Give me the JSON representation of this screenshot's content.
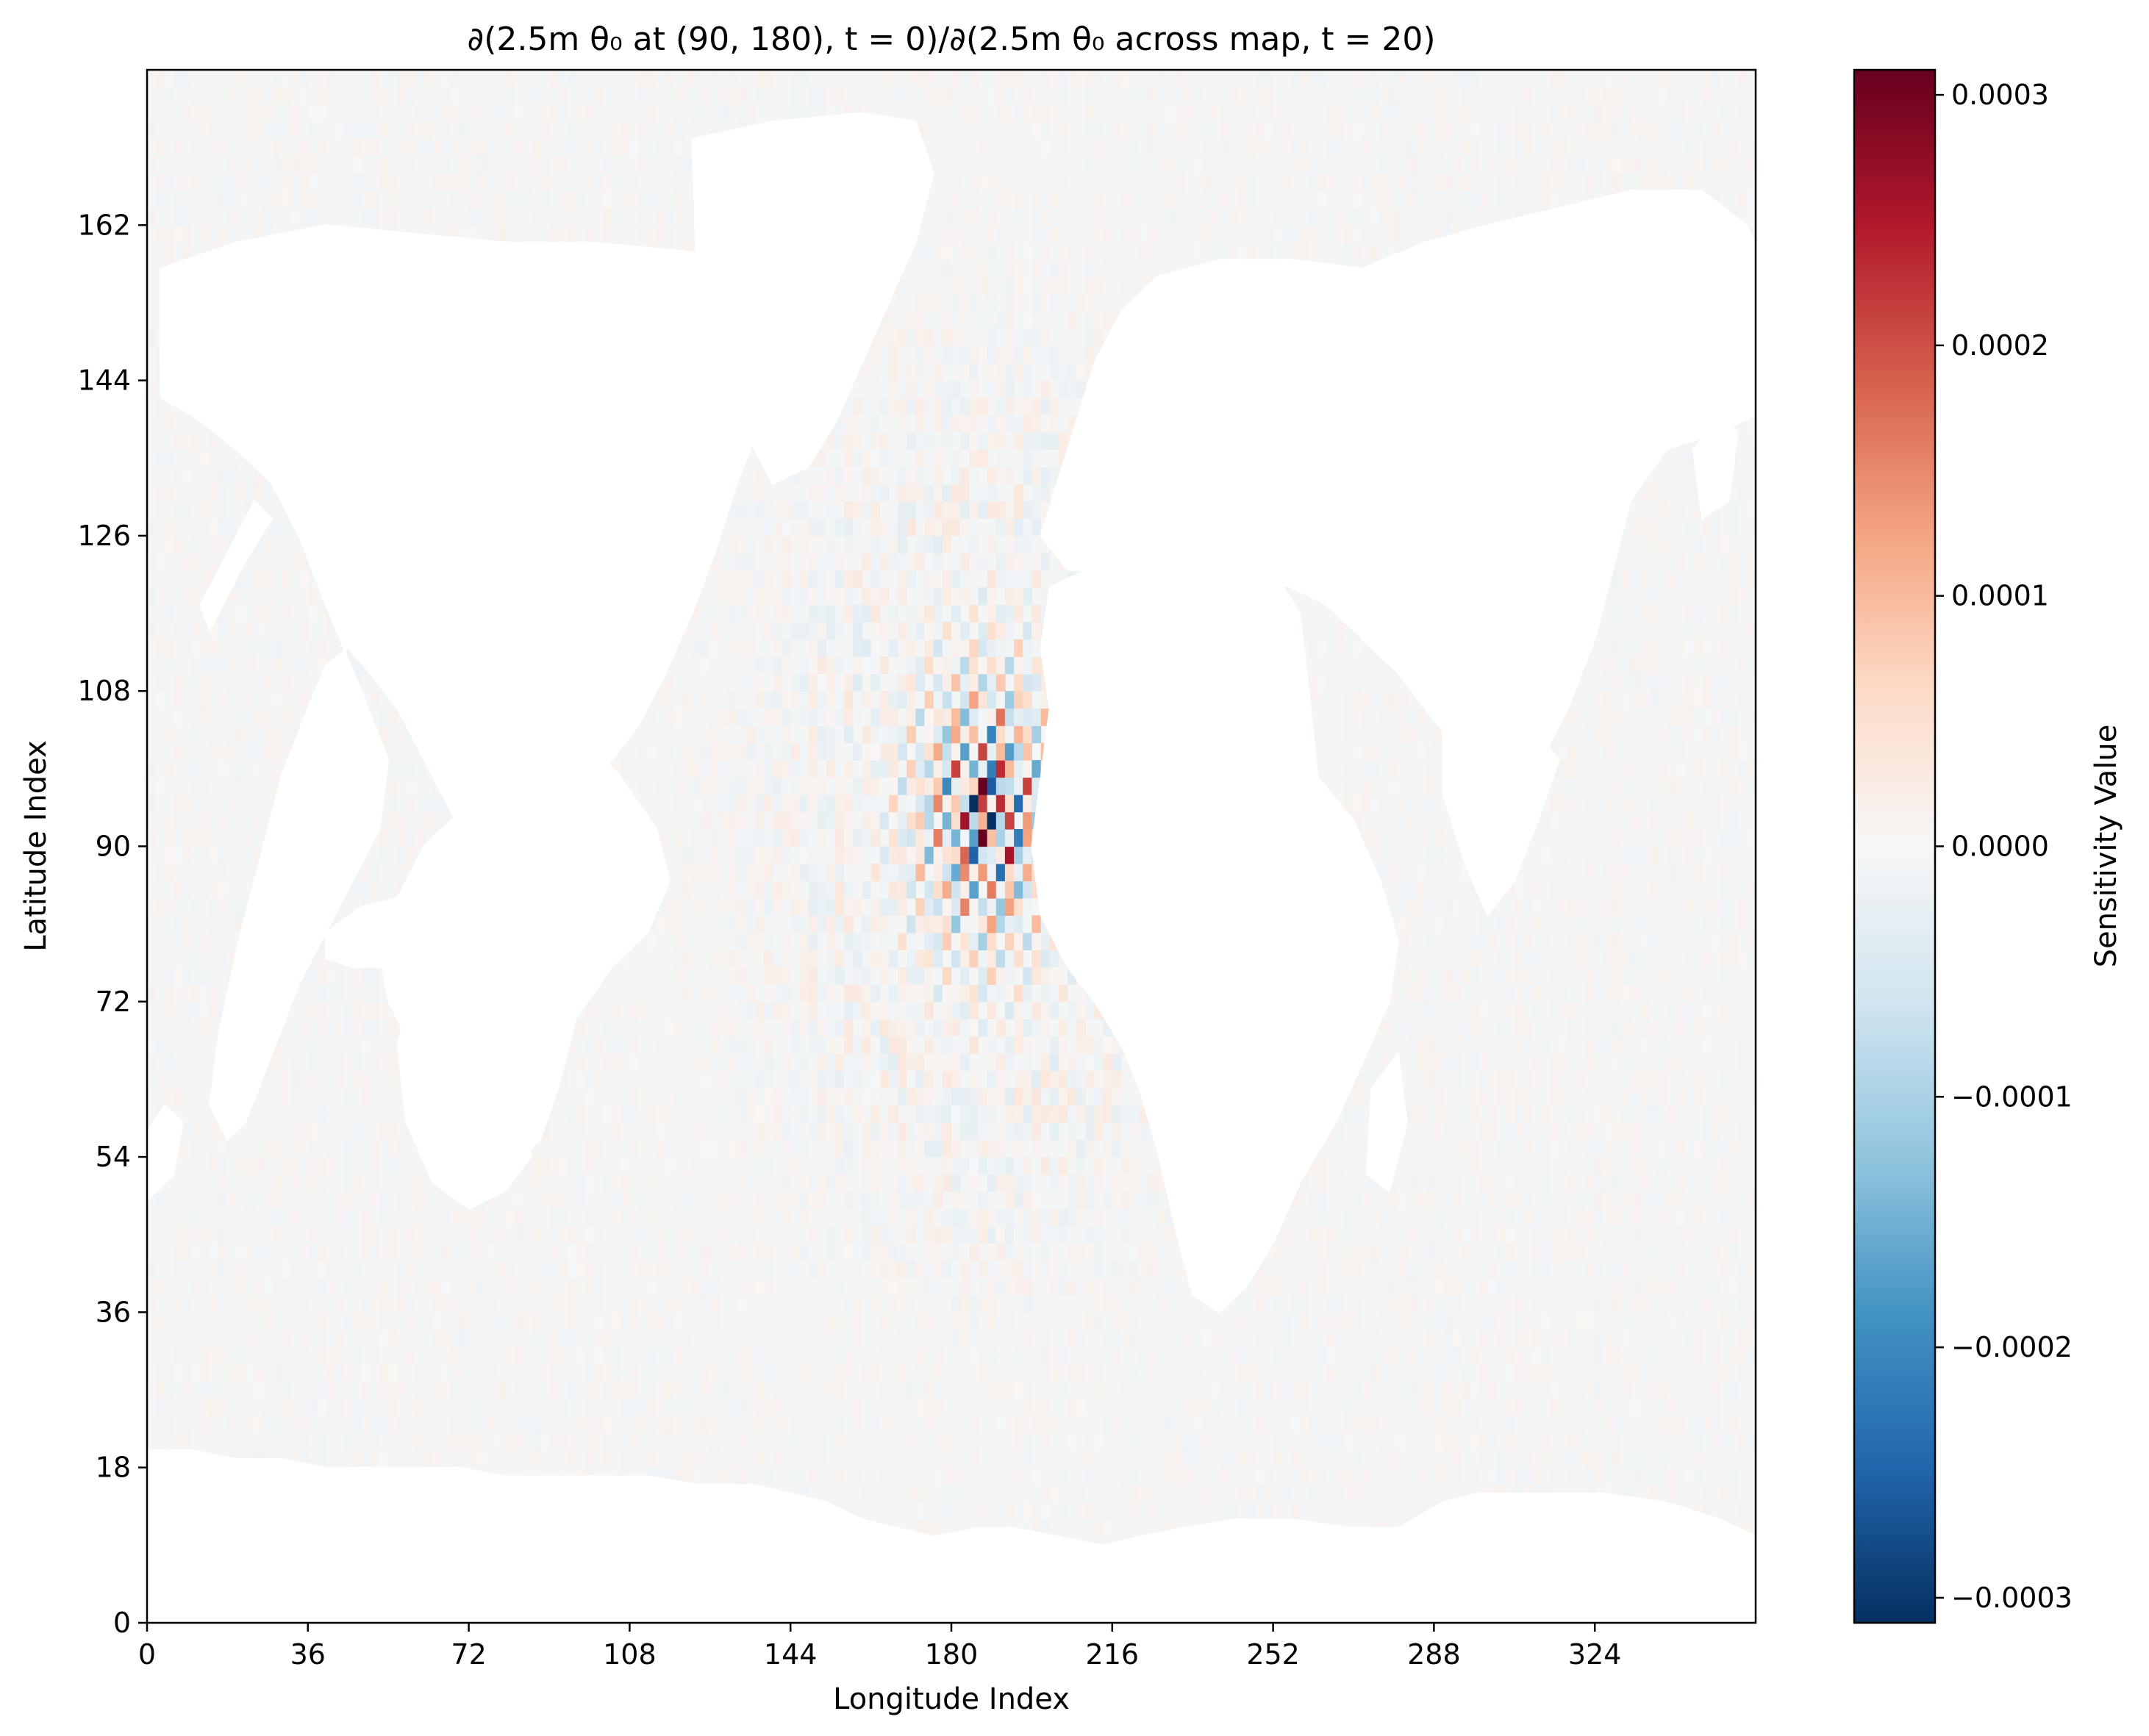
{
  "chart_data": {
    "type": "heatmap",
    "title": "∂(2.5m θ₀ at (90, 180), t = 0)/∂(2.5m θ₀ across map, t = 20)",
    "xlabel": "Longitude Index",
    "ylabel": "Latitude Index",
    "xlim": [
      0,
      360
    ],
    "ylim": [
      0,
      180
    ],
    "xticks": [
      0,
      36,
      72,
      108,
      144,
      180,
      216,
      252,
      288,
      324
    ],
    "yticks": [
      0,
      18,
      36,
      54,
      72,
      90,
      108,
      126,
      144,
      162
    ],
    "colorbar": {
      "label": "Sensitivity Value",
      "colormap": "RdBu_r",
      "vmin": -0.00031,
      "vmax": 0.00031,
      "ticks": [
        -0.0003,
        -0.0002,
        -0.0001,
        0.0,
        0.0001,
        0.0002,
        0.0003
      ],
      "tick_labels": [
        "−0.0003",
        "−0.0002",
        "−0.0001",
        "0.0000",
        "0.0001",
        "0.0002",
        "0.0003"
      ]
    },
    "source_point": {
      "lon": 180,
      "lat": 90
    },
    "background_ocean_value": -5e-06,
    "land_masks": [
      {
        "name": "north-america",
        "points": [
          [
            3,
            157
          ],
          [
            20,
            160
          ],
          [
            40,
            162
          ],
          [
            60,
            161
          ],
          [
            80,
            160
          ],
          [
            100,
            160
          ],
          [
            120,
            159
          ],
          [
            135,
            158
          ],
          [
            143,
            157
          ],
          [
            150,
            150
          ],
          [
            143,
            146
          ],
          [
            138,
            140
          ],
          [
            132,
            132
          ],
          [
            127,
            124
          ],
          [
            122,
            117
          ],
          [
            116,
            110
          ],
          [
            110,
            104
          ],
          [
            104,
            100
          ],
          [
            98,
            96
          ],
          [
            92,
            92
          ],
          [
            88,
            86
          ],
          [
            86,
            80
          ],
          [
            84,
            74
          ],
          [
            82,
            68
          ],
          [
            80,
            76
          ],
          [
            76,
            85
          ],
          [
            70,
            92
          ],
          [
            62,
            100
          ],
          [
            56,
            106
          ],
          [
            50,
            110
          ],
          [
            45,
            113
          ],
          [
            40,
            111
          ],
          [
            36,
            106
          ],
          [
            30,
            98
          ],
          [
            25,
            88
          ],
          [
            20,
            78
          ],
          [
            16,
            68
          ],
          [
            14,
            60
          ],
          [
            18,
            56
          ],
          [
            22,
            58
          ],
          [
            28,
            66
          ],
          [
            34,
            74
          ],
          [
            40,
            80
          ],
          [
            46,
            86
          ],
          [
            52,
            92
          ],
          [
            54,
            100
          ],
          [
            48,
            108
          ],
          [
            40,
            118
          ],
          [
            34,
            126
          ],
          [
            28,
            132
          ],
          [
            20,
            136
          ],
          [
            10,
            140
          ],
          [
            3,
            142
          ]
        ]
      },
      {
        "name": "greenland",
        "points": [
          [
            122,
            172
          ],
          [
            140,
            174
          ],
          [
            160,
            175
          ],
          [
            172,
            174
          ],
          [
            176,
            168
          ],
          [
            172,
            160
          ],
          [
            166,
            153
          ],
          [
            160,
            146
          ],
          [
            154,
            139
          ],
          [
            148,
            134
          ],
          [
            140,
            132
          ],
          [
            134,
            138
          ],
          [
            128,
            146
          ],
          [
            123,
            156
          ]
        ]
      },
      {
        "name": "south-america",
        "points": [
          [
            70,
            94
          ],
          [
            62,
            90
          ],
          [
            56,
            84
          ],
          [
            52,
            78
          ],
          [
            54,
            72
          ],
          [
            60,
            66
          ],
          [
            66,
            60
          ],
          [
            74,
            55
          ],
          [
            82,
            53
          ],
          [
            88,
            56
          ],
          [
            92,
            62
          ],
          [
            96,
            70
          ],
          [
            104,
            76
          ],
          [
            112,
            80
          ],
          [
            117,
            86
          ],
          [
            114,
            92
          ],
          [
            106,
            98
          ],
          [
            96,
            104
          ],
          [
            86,
            108
          ],
          [
            80,
            108
          ],
          [
            74,
            104
          ]
        ]
      },
      {
        "name": "antarctica",
        "points": [
          [
            0,
            0
          ],
          [
            360,
            0
          ],
          [
            360,
            10
          ],
          [
            352,
            12
          ],
          [
            340,
            14
          ],
          [
            326,
            15
          ],
          [
            312,
            15
          ],
          [
            298,
            15
          ],
          [
            290,
            14
          ],
          [
            280,
            11
          ],
          [
            270,
            11
          ],
          [
            256,
            12
          ],
          [
            244,
            12
          ],
          [
            232,
            11
          ],
          [
            222,
            10
          ],
          [
            214,
            9
          ],
          [
            204,
            10
          ],
          [
            194,
            11
          ],
          [
            186,
            11
          ],
          [
            176,
            10
          ],
          [
            168,
            11
          ],
          [
            160,
            12
          ],
          [
            152,
            14
          ],
          [
            144,
            15
          ],
          [
            136,
            16
          ],
          [
            124,
            16
          ],
          [
            112,
            17
          ],
          [
            100,
            17
          ],
          [
            90,
            17
          ],
          [
            80,
            17
          ],
          [
            70,
            18
          ],
          [
            60,
            18
          ],
          [
            50,
            18
          ],
          [
            40,
            18
          ],
          [
            30,
            19
          ],
          [
            20,
            19
          ],
          [
            10,
            20
          ],
          [
            0,
            20
          ]
        ]
      },
      {
        "name": "africa",
        "points": [
          [
            202,
            120
          ],
          [
            210,
            122
          ],
          [
            222,
            124
          ],
          [
            234,
            125
          ],
          [
            244,
            124
          ],
          [
            252,
            122
          ],
          [
            258,
            117
          ],
          [
            260,
            108
          ],
          [
            262,
            98
          ],
          [
            270,
            93
          ],
          [
            276,
            86
          ],
          [
            280,
            79
          ],
          [
            278,
            72
          ],
          [
            273,
            66
          ],
          [
            266,
            58
          ],
          [
            258,
            51
          ],
          [
            252,
            44
          ],
          [
            246,
            39
          ],
          [
            240,
            36
          ],
          [
            234,
            38
          ],
          [
            230,
            46
          ],
          [
            226,
            55
          ],
          [
            222,
            62
          ],
          [
            218,
            67
          ],
          [
            212,
            72
          ],
          [
            206,
            76
          ],
          [
            200,
            82
          ],
          [
            198,
            90
          ],
          [
            200,
            98
          ],
          [
            202,
            106
          ],
          [
            200,
            113
          ]
        ]
      },
      {
        "name": "madagascar",
        "points": [
          [
            274,
            62
          ],
          [
            280,
            66
          ],
          [
            282,
            58
          ],
          [
            278,
            50
          ],
          [
            273,
            52
          ]
        ]
      },
      {
        "name": "eurasia",
        "points": [
          [
            200,
            126
          ],
          [
            206,
            136
          ],
          [
            212,
            146
          ],
          [
            218,
            152
          ],
          [
            226,
            156
          ],
          [
            240,
            158
          ],
          [
            256,
            158
          ],
          [
            272,
            157
          ],
          [
            286,
            160
          ],
          [
            300,
            162
          ],
          [
            316,
            164
          ],
          [
            332,
            166
          ],
          [
            348,
            166
          ],
          [
            358,
            162
          ],
          [
            360,
            160
          ],
          [
            360,
            140
          ],
          [
            352,
            138
          ],
          [
            340,
            136
          ],
          [
            332,
            130
          ],
          [
            328,
            122
          ],
          [
            324,
            114
          ],
          [
            318,
            106
          ],
          [
            312,
            100
          ],
          [
            306,
            96
          ],
          [
            298,
            98
          ],
          [
            292,
            102
          ],
          [
            286,
            106
          ],
          [
            280,
            110
          ],
          [
            272,
            114
          ],
          [
            264,
            118
          ],
          [
            256,
            120
          ],
          [
            246,
            122
          ],
          [
            236,
            122
          ],
          [
            226,
            122
          ],
          [
            214,
            122
          ],
          [
            206,
            122
          ]
        ]
      },
      {
        "name": "indian-subcontinent",
        "points": [
          [
            290,
            104
          ],
          [
            300,
            106
          ],
          [
            310,
            104
          ],
          [
            316,
            100
          ],
          [
            312,
            94
          ],
          [
            306,
            86
          ],
          [
            300,
            82
          ],
          [
            295,
            88
          ],
          [
            290,
            96
          ]
        ]
      },
      {
        "name": "australia",
        "points": [
          [
            60,
            74
          ],
          [
            68,
            76
          ],
          [
            78,
            72
          ],
          [
            84,
            62
          ],
          [
            86,
            54
          ],
          [
            80,
            50
          ],
          [
            72,
            48
          ],
          [
            64,
            51
          ],
          [
            58,
            58
          ],
          [
            56,
            67
          ]
        ]
      },
      {
        "name": "indonesia-newguinea",
        "points": [
          [
            40,
            80
          ],
          [
            48,
            83
          ],
          [
            56,
            84
          ],
          [
            60,
            80
          ],
          [
            54,
            76
          ],
          [
            46,
            76
          ],
          [
            40,
            77
          ]
        ]
      },
      {
        "name": "japan",
        "points": [
          [
            14,
            115
          ],
          [
            22,
            123
          ],
          [
            28,
            128
          ],
          [
            24,
            130
          ],
          [
            18,
            124
          ],
          [
            12,
            118
          ]
        ]
      },
      {
        "name": "uk",
        "points": [
          [
            346,
            136
          ],
          [
            352,
            140
          ],
          [
            356,
            138
          ],
          [
            354,
            130
          ],
          [
            348,
            128
          ]
        ]
      },
      {
        "name": "new-zealand",
        "points": [
          [
            0,
            57
          ],
          [
            4,
            60
          ],
          [
            8,
            58
          ],
          [
            6,
            52
          ],
          [
            0,
            49
          ]
        ]
      }
    ]
  }
}
